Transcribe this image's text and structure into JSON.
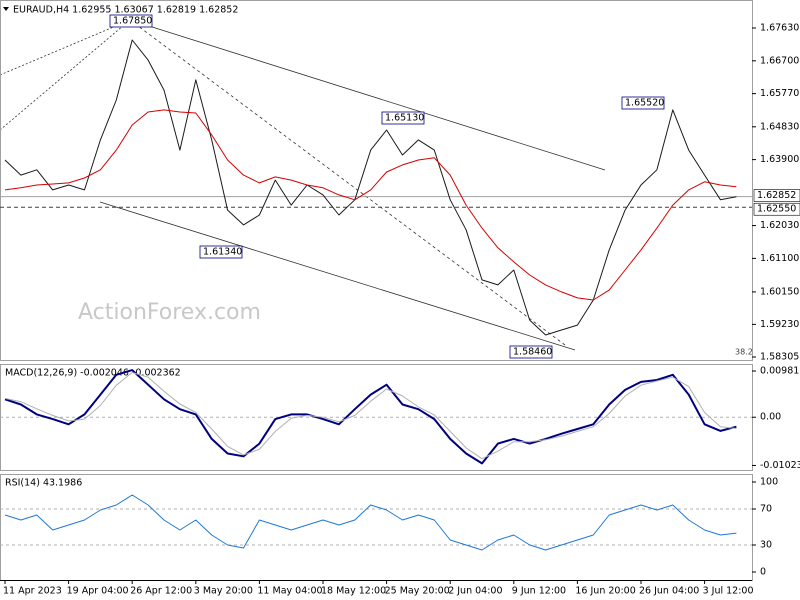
{
  "chart_data": [
    {
      "type": "line",
      "title": "EURAUD,H4 1.62955 1.63067 1.62819 1.62852",
      "categories": [
        "11 Apr 2023",
        null,
        null,
        null,
        "19 Apr 04:00",
        null,
        null,
        null,
        "26 Apr 12:00",
        null,
        null,
        null,
        "3 May 20:00",
        null,
        null,
        null,
        "11 May 04:00",
        null,
        null,
        null,
        "18 May 12:00",
        null,
        null,
        null,
        "25 May 20:00",
        null,
        null,
        null,
        "2 Jun 04:00",
        null,
        null,
        null,
        "9 Jun 12:00",
        null,
        null,
        null,
        "16 Jun 20:00",
        null,
        null,
        null,
        "26 Jun 04:00",
        null,
        null,
        null,
        "3 Jul 12:00",
        null,
        null
      ],
      "series": [
        {
          "color": "#1a1a1a",
          "values": [
            1.6389,
            1.6346,
            1.6361,
            1.6304,
            1.6318,
            1.6304,
            1.6446,
            1.6559,
            1.6729,
            1.6672,
            1.6587,
            1.6417,
            1.6616,
            1.6446,
            1.6247,
            1.6205,
            1.6233,
            1.6332,
            1.6261,
            1.6318,
            1.629,
            1.6233,
            1.6276,
            1.6417,
            1.6474,
            1.6403,
            1.6446,
            1.6417,
            1.6276,
            1.6191,
            1.6049,
            1.6035,
            1.6077,
            1.5935,
            1.5893,
            1.5907,
            1.5921,
            1.5992,
            1.6134,
            1.6247,
            1.6318,
            1.6361,
            1.6531,
            1.6417,
            1.6346,
            1.6276,
            1.6285
          ]
        },
        {
          "color": "#d40000",
          "values": [
            1.6304,
            1.631,
            1.6318,
            1.6321,
            1.6324,
            1.6338,
            1.6361,
            1.6417,
            1.6488,
            1.6525,
            1.6531,
            1.6525,
            1.6522,
            1.646,
            1.6389,
            1.6346,
            1.6324,
            1.6341,
            1.6332,
            1.6318,
            1.631,
            1.629,
            1.6276,
            1.6304,
            1.6355,
            1.6375,
            1.6389,
            1.6395,
            1.6346,
            1.6261,
            1.6196,
            1.614,
            1.61,
            1.6063,
            1.6035,
            1.6015,
            1.5998,
            1.5992,
            1.602,
            1.6077,
            1.6134,
            1.6196,
            1.6261,
            1.6304,
            1.6327,
            1.6318,
            1.6313
          ]
        }
      ],
      "ylim": [
        1.5822,
        1.68424
      ],
      "yticks": [
        {
          "value": 1.6763,
          "label": "1.67630"
        },
        {
          "value": 1.667,
          "label": "1.66700"
        },
        {
          "value": 1.6577,
          "label": "1.65770"
        },
        {
          "value": 1.6483,
          "label": "1.64830"
        },
        {
          "value": 1.639,
          "label": "1.63900"
        },
        {
          "value": 1.6203,
          "label": "1.62030"
        },
        {
          "value": 1.611,
          "label": "1.61100"
        },
        {
          "value": 1.6015,
          "label": "1.60150"
        },
        {
          "value": 1.5923,
          "label": "1.59230"
        },
        {
          "value": 1.58305,
          "label": "1.58305"
        }
      ],
      "price_lines": [
        {
          "value": 1.62852,
          "label": "1.62852"
        },
        {
          "value": 1.6255,
          "label": "1.62550"
        }
      ],
      "annotations": [
        "1.67850",
        "1.61340",
        "1.65130",
        "1.58460",
        "1.65520"
      ],
      "fib_label": "38.2",
      "watermark": "ActionForex.com"
    },
    {
      "type": "line",
      "title": "MACD(12,26,9) -0.002046 -0.002362",
      "series": [
        {
          "color": "#000080",
          "values": [
            0.0038,
            0.0027,
            0.0006,
            -0.0004,
            -0.0015,
            0.0006,
            0.0048,
            0.009,
            0.01,
            0.0069,
            0.0038,
            0.0017,
            0.0006,
            -0.0046,
            -0.0077,
            -0.0083,
            -0.0056,
            -0.0004,
            0.0006,
            0.0006,
            -0.0004,
            -0.0015,
            0.0017,
            0.0048,
            0.0069,
            0.0027,
            0.0017,
            -0.0004,
            -0.0046,
            -0.0077,
            -0.0098,
            -0.0056,
            -0.0046,
            -0.0056,
            -0.0046,
            -0.0035,
            -0.0025,
            -0.0015,
            0.0027,
            0.0058,
            0.0075,
            0.0079,
            0.009,
            0.0048,
            -0.0015,
            -0.0029,
            -0.002
          ]
        },
        {
          "color": "#b0b0b0",
          "values": [
            0.004,
            0.0033,
            0.0018,
            0.0004,
            -0.0008,
            -0.0004,
            0.0025,
            0.0068,
            0.0095,
            0.0085,
            0.0055,
            0.0028,
            0.001,
            -0.0025,
            -0.0062,
            -0.008,
            -0.0068,
            -0.003,
            -0.0002,
            0.0004,
            0,
            -0.001,
            0.0004,
            0.0034,
            0.006,
            0.0045,
            0.0022,
            0.0005,
            -0.003,
            -0.0065,
            -0.0088,
            -0.0072,
            -0.0052,
            -0.0052,
            -0.0048,
            -0.004,
            -0.003,
            -0.002,
            0.0008,
            0.0045,
            0.0068,
            0.0077,
            0.0085,
            0.0065,
            0.001,
            -0.002,
            -0.0024
          ]
        }
      ],
      "ylim": [
        -0.0112,
        0.0113
      ],
      "yticks": [
        0.00981,
        {
          "value": 0,
          "label": "0.00"
        },
        -0.010235
      ],
      "levels": [
        0
      ]
    },
    {
      "type": "line",
      "title": "RSI(14) 43.1986",
      "series": [
        {
          "color": "#1e78d7",
          "values": [
            63.3,
            57.8,
            63.3,
            46.7,
            52.2,
            57.8,
            68.9,
            74.4,
            85.6,
            74.4,
            57.8,
            46.7,
            57.8,
            41.1,
            30,
            26.7,
            57.8,
            52.2,
            46.7,
            52.2,
            57.8,
            52.2,
            57.8,
            74.4,
            68.9,
            57.8,
            63.3,
            57.8,
            35.6,
            30,
            24.4,
            35.6,
            41.1,
            30,
            24.4,
            30,
            35.6,
            41.1,
            63.3,
            68.9,
            74.4,
            68.9,
            74.4,
            57.8,
            46.7,
            41.1,
            43.2
          ]
        }
      ],
      "ylim": [
        -8.9,
        108.9
      ],
      "yticks": [
        100,
        70,
        30,
        0
      ],
      "levels": [
        70,
        30
      ]
    }
  ]
}
